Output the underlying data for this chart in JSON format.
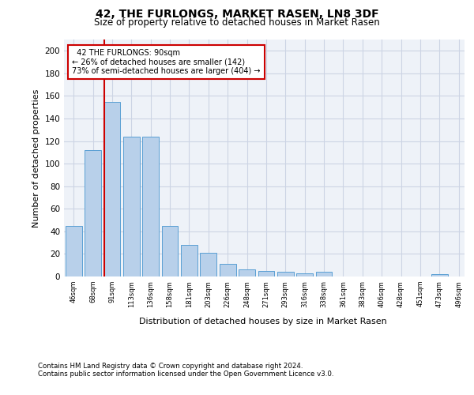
{
  "title": "42, THE FURLONGS, MARKET RASEN, LN8 3DF",
  "subtitle": "Size of property relative to detached houses in Market Rasen",
  "xlabel": "Distribution of detached houses by size in Market Rasen",
  "ylabel": "Number of detached properties",
  "bar_values": [
    45,
    112,
    155,
    124,
    124,
    45,
    28,
    21,
    11,
    6,
    5,
    4,
    3,
    4,
    0,
    0,
    0,
    0,
    0,
    2
  ],
  "bar_labels": [
    "46sqm",
    "68sqm",
    "91sqm",
    "113sqm",
    "136sqm",
    "158sqm",
    "181sqm",
    "203sqm",
    "226sqm",
    "248sqm",
    "271sqm",
    "293sqm",
    "316sqm",
    "338sqm",
    "361sqm",
    "383sqm",
    "406sqm",
    "428sqm",
    "451sqm",
    "473sqm",
    "496sqm"
  ],
  "bar_color": "#b8d0ea",
  "bar_edge_color": "#5a9fd4",
  "vline_index": 2,
  "property_size": "90sqm",
  "property_name": "42 THE FURLONGS",
  "smaller_pct": 26,
  "smaller_count": 142,
  "larger_pct": 73,
  "larger_count": 404,
  "vline_color": "#cc0000",
  "ylim_max": 210,
  "yticks": [
    0,
    20,
    40,
    60,
    80,
    100,
    120,
    140,
    160,
    180,
    200
  ],
  "footer_line1": "Contains HM Land Registry data © Crown copyright and database right 2024.",
  "footer_line2": "Contains public sector information licensed under the Open Government Licence v3.0.",
  "bg_color": "#eef2f8",
  "grid_color": "#ccd4e4"
}
